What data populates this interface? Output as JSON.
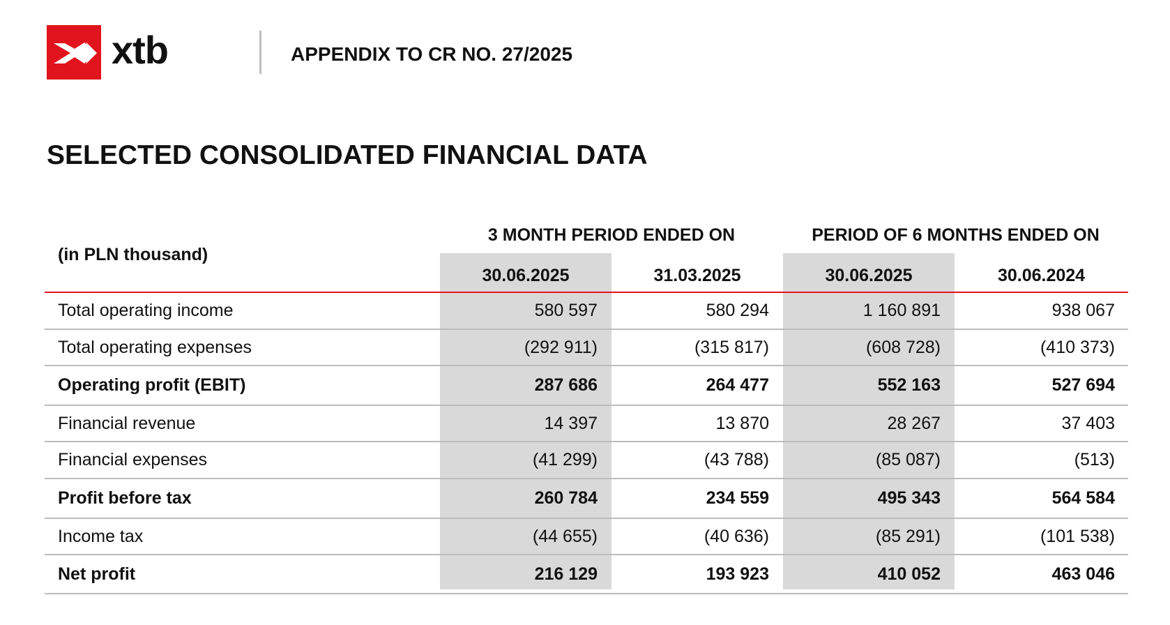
{
  "header": {
    "logo_text": "xtb",
    "appendix_title": "APPENDIX TO CR NO. 27/2025",
    "brand_color": "#e1131c"
  },
  "section_title": "SELECTED CONSOLIDATED FINANCIAL DATA",
  "table": {
    "unit_label": "(in PLN thousand)",
    "period_groups": [
      "3 MONTH PERIOD ENDED ON",
      "PERIOD OF 6 MONTHS ENDED ON"
    ],
    "columns": [
      "30.06.2025",
      "31.03.2025",
      "30.06.2025",
      "30.06.2024"
    ],
    "rows": [
      {
        "label": "Total operating income",
        "bold": false,
        "values": [
          "580 597",
          "580 294",
          "1 160 891",
          "938 067"
        ]
      },
      {
        "label": "Total operating expenses",
        "bold": false,
        "values": [
          "(292 911)",
          "(315 817)",
          "(608 728)",
          "(410 373)"
        ]
      },
      {
        "label": "Operating profit (EBIT)",
        "bold": true,
        "values": [
          "287 686",
          "264 477",
          "552 163",
          "527 694"
        ]
      },
      {
        "label": "Financial revenue",
        "bold": false,
        "values": [
          "14 397",
          "13 870",
          "28 267",
          "37 403"
        ]
      },
      {
        "label": "Financial expenses",
        "bold": false,
        "values": [
          "(41 299)",
          "(43 788)",
          "(85 087)",
          "(513)"
        ]
      },
      {
        "label": "Profit before tax",
        "bold": true,
        "values": [
          "260 784",
          "234 559",
          "495 343",
          "564 584"
        ]
      },
      {
        "label": "Income tax",
        "bold": false,
        "values": [
          "(44 655)",
          "(40 636)",
          "(85 291)",
          "(101 538)"
        ]
      },
      {
        "label": "Net profit",
        "bold": true,
        "values": [
          "216 129",
          "193 923",
          "410 052",
          "463 046"
        ]
      }
    ]
  }
}
